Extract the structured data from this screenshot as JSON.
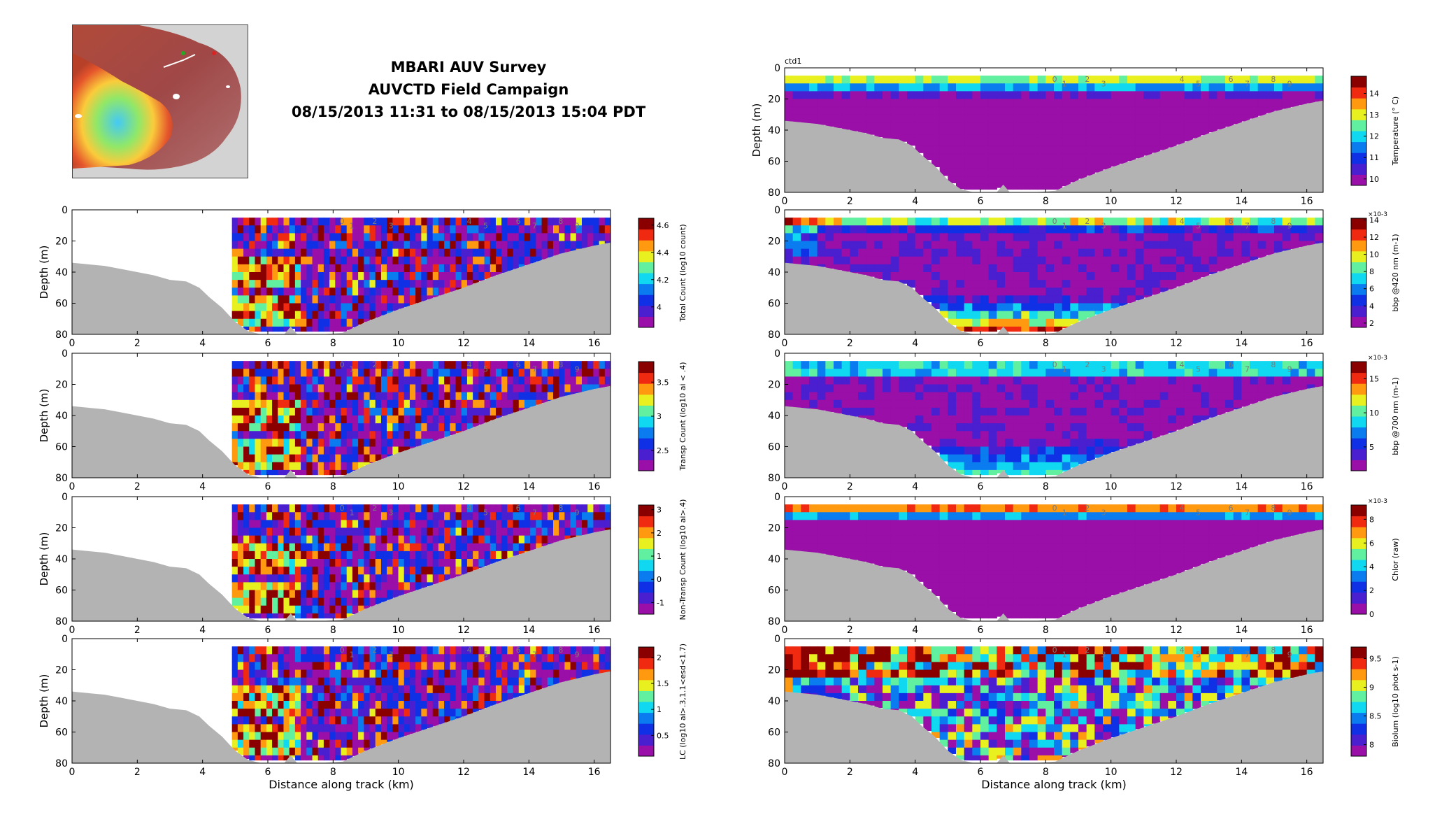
{
  "header": {
    "line1": "MBARI AUV Survey",
    "line2": "AUVCTD Field Campaign",
    "line3": "08/15/2013 11:31 to 08/15/2013 15:04 PDT"
  },
  "colors": {
    "bathymetry": "#b3b3b3",
    "colormap": [
      "#9a0fa8",
      "#4a1fd0",
      "#1030e6",
      "#0a7cf0",
      "#10d8f0",
      "#60f0a0",
      "#e8f020",
      "#ff9a10",
      "#f02a10",
      "#8a0000"
    ]
  },
  "chart_data": [
    {
      "id": "total-count",
      "column": "left",
      "row": 0,
      "type": "heatmap",
      "title": "",
      "xlabel": "",
      "ylabel": "Depth (m)",
      "xlim": [
        0,
        16.5
      ],
      "ylim": [
        0,
        80
      ],
      "xticks": [
        0,
        2,
        4,
        6,
        8,
        10,
        12,
        14,
        16
      ],
      "yticks": [
        0,
        20,
        40,
        60,
        80
      ],
      "colorbar": {
        "label": "Total Count (log10 count)",
        "ticks": [
          "4",
          "4.2",
          "4.4",
          "4.6"
        ],
        "range": [
          3.85,
          4.65
        ]
      },
      "station_labels": [
        "0",
        "1",
        "2",
        "3",
        "4",
        "5",
        "6",
        "7",
        "8",
        "9"
      ],
      "data_start_km": 4.9
    },
    {
      "id": "transp-count",
      "column": "left",
      "row": 1,
      "type": "heatmap",
      "title": "",
      "xlabel": "",
      "ylabel": "Depth (m)",
      "xlim": [
        0,
        16.5
      ],
      "ylim": [
        0,
        80
      ],
      "xticks": [
        0,
        2,
        4,
        6,
        8,
        10,
        12,
        14,
        16
      ],
      "yticks": [
        0,
        20,
        40,
        60,
        80
      ],
      "colorbar": {
        "label": "Transp Count (log10 ai < .4)",
        "ticks": [
          "2.5",
          "3",
          "3.5"
        ],
        "range": [
          2.2,
          3.8
        ]
      },
      "station_labels": [
        "0",
        "1",
        "2",
        "3",
        "4",
        "5",
        "6",
        "7",
        "8",
        "9"
      ],
      "data_start_km": 4.9
    },
    {
      "id": "non-transp-count",
      "column": "left",
      "row": 2,
      "type": "heatmap",
      "title": "",
      "xlabel": "",
      "ylabel": "Depth (m)",
      "xlim": [
        0,
        16.5
      ],
      "ylim": [
        0,
        80
      ],
      "xticks": [
        0,
        2,
        4,
        6,
        8,
        10,
        12,
        14,
        16
      ],
      "yticks": [
        0,
        20,
        40,
        60,
        80
      ],
      "colorbar": {
        "label": "Non-Transp Count (log10 ai>.4)",
        "ticks": [
          "-1",
          "0",
          "1",
          "2",
          "3"
        ],
        "range": [
          -1.5,
          3.2
        ]
      },
      "station_labels": [
        "0",
        "1",
        "2",
        "3",
        "4",
        "5",
        "6",
        "7",
        "8",
        "9"
      ],
      "data_start_km": 4.9
    },
    {
      "id": "lc",
      "column": "left",
      "row": 3,
      "type": "heatmap",
      "title": "",
      "xlabel": "Distance along track (km)",
      "ylabel": "Depth (m)",
      "xlim": [
        0,
        16.5
      ],
      "ylim": [
        0,
        80
      ],
      "xticks": [
        0,
        2,
        4,
        6,
        8,
        10,
        12,
        14,
        16
      ],
      "yticks": [
        0,
        20,
        40,
        60,
        80
      ],
      "colorbar": {
        "label": "LC (log10 ai>.3,1.1<esd<1.7)",
        "ticks": [
          "0.5",
          "1",
          "1.5",
          "2"
        ],
        "range": [
          0.1,
          2.2
        ]
      },
      "station_labels": [
        "0",
        "1",
        "2",
        "3",
        "4",
        "5",
        "6",
        "7",
        "8",
        "9"
      ],
      "data_start_km": 4.9
    },
    {
      "id": "temperature",
      "column": "right",
      "row": -1,
      "type": "heatmap",
      "title": "ctd1",
      "xlabel": "",
      "ylabel": "Depth (m)",
      "xlim": [
        0,
        16.5
      ],
      "ylim": [
        0,
        80
      ],
      "xticks": [
        0,
        2,
        4,
        6,
        8,
        10,
        12,
        14,
        16
      ],
      "yticks": [
        0,
        20,
        40,
        60,
        80
      ],
      "colorbar": {
        "label": "Temperature (° C)",
        "ticks": [
          "10",
          "11",
          "12",
          "13",
          "14"
        ],
        "range": [
          9.7,
          14.8
        ]
      },
      "station_labels": [
        "0",
        "1",
        "2",
        "3",
        "4",
        "5",
        "6",
        "7",
        "8",
        "9"
      ],
      "data_start_km": 0
    },
    {
      "id": "bbp420",
      "column": "right",
      "row": 0,
      "type": "heatmap",
      "title": "",
      "xlabel": "",
      "ylabel": "",
      "xlim": [
        0,
        16.5
      ],
      "ylim": [
        0,
        80
      ],
      "xticks": [
        0,
        2,
        4,
        6,
        8,
        10,
        12,
        14,
        16
      ],
      "yticks": [
        0,
        20,
        40,
        60,
        80
      ],
      "colorbar": {
        "label": "bbp @420 nm (m-1)",
        "ticks": [
          "2",
          "4",
          "6",
          "8",
          "10",
          "12",
          "14"
        ],
        "range": [
          1.5,
          14.2
        ],
        "exponent": "×10-3"
      },
      "station_labels": [
        "0",
        "1",
        "2",
        "3",
        "4",
        "5",
        "6",
        "7",
        "8",
        "9"
      ],
      "data_start_km": 0
    },
    {
      "id": "bbp700",
      "column": "right",
      "row": 1,
      "type": "heatmap",
      "title": "",
      "xlabel": "",
      "ylabel": "",
      "xlim": [
        0,
        16.5
      ],
      "ylim": [
        0,
        80
      ],
      "xticks": [
        0,
        2,
        4,
        6,
        8,
        10,
        12,
        14,
        16
      ],
      "yticks": [
        0,
        20,
        40,
        60,
        80
      ],
      "colorbar": {
        "label": "bbp @700 nm (m-1)",
        "ticks": [
          "5",
          "10",
          "15"
        ],
        "range": [
          1.5,
          17.5
        ],
        "exponent": "×10-3"
      },
      "station_labels": [
        "0",
        "1",
        "2",
        "3",
        "4",
        "5",
        "6",
        "7",
        "8",
        "9"
      ],
      "data_start_km": 0
    },
    {
      "id": "chlor",
      "column": "right",
      "row": 2,
      "type": "heatmap",
      "title": "",
      "xlabel": "",
      "ylabel": "",
      "xlim": [
        0,
        16.5
      ],
      "ylim": [
        0,
        80
      ],
      "xticks": [
        0,
        2,
        4,
        6,
        8,
        10,
        12,
        14,
        16
      ],
      "yticks": [
        0,
        20,
        40,
        60,
        80
      ],
      "colorbar": {
        "label": "Chlor (raw)",
        "ticks": [
          "0",
          "2",
          "4",
          "6",
          "8"
        ],
        "range": [
          0,
          9.2
        ],
        "exponent": "×10-3"
      },
      "station_labels": [
        "0",
        "1",
        "2",
        "3",
        "4",
        "5",
        "6",
        "7",
        "8",
        "9"
      ],
      "data_start_km": 0
    },
    {
      "id": "biolum",
      "column": "right",
      "row": 3,
      "type": "heatmap",
      "title": "",
      "xlabel": "Distance along track (km)",
      "ylabel": "",
      "xlim": [
        0,
        16.5
      ],
      "ylim": [
        0,
        80
      ],
      "xticks": [
        0,
        2,
        4,
        6,
        8,
        10,
        12,
        14,
        16
      ],
      "yticks": [
        0,
        20,
        40,
        60,
        80
      ],
      "colorbar": {
        "label": "Biolum (log10 phot s-1)",
        "ticks": [
          "8",
          "8.5",
          "9",
          "9.5"
        ],
        "range": [
          7.8,
          9.7
        ]
      },
      "station_labels": [
        "0",
        "1",
        "2",
        "3",
        "4",
        "5",
        "6",
        "7",
        "8",
        "9"
      ],
      "data_start_km": 0
    }
  ],
  "bathymetry_depth_m": [
    [
      0,
      34
    ],
    [
      0.5,
      35
    ],
    [
      1,
      36
    ],
    [
      1.5,
      38
    ],
    [
      2,
      40
    ],
    [
      2.5,
      42
    ],
    [
      3,
      45
    ],
    [
      3.5,
      46
    ],
    [
      3.9,
      50
    ],
    [
      4.2,
      56
    ],
    [
      4.6,
      63
    ],
    [
      5.0,
      72
    ],
    [
      5.4,
      78
    ],
    [
      5.8,
      80
    ],
    [
      6.5,
      80
    ],
    [
      6.7,
      75
    ],
    [
      6.9,
      80
    ],
    [
      7.6,
      80
    ],
    [
      8.3,
      79
    ],
    [
      9,
      72
    ],
    [
      10,
      64
    ],
    [
      11,
      57
    ],
    [
      12,
      50
    ],
    [
      13,
      42
    ],
    [
      14,
      35
    ],
    [
      15,
      28
    ],
    [
      16,
      23
    ],
    [
      16.5,
      21
    ]
  ]
}
